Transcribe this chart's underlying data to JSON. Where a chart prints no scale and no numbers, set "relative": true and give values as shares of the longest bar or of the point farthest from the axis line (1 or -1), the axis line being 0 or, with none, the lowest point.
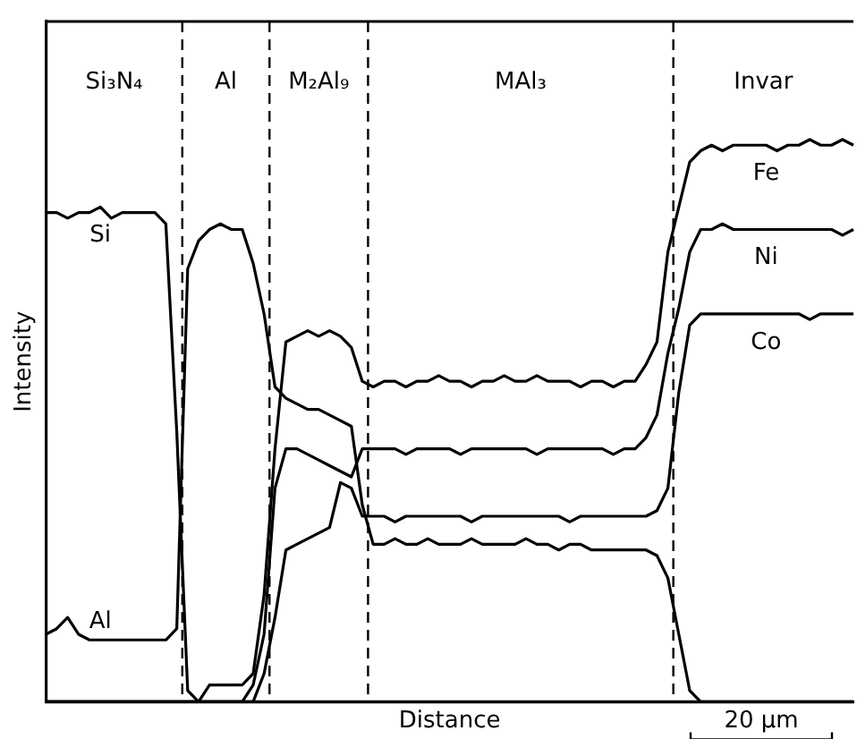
{
  "chart_data": {
    "type": "line",
    "relative": true,
    "xlabel": "Distance",
    "ylabel": "Intensity",
    "legend": false,
    "grid": false,
    "marker": "none",
    "categories": [
      null,
      null,
      null,
      null,
      null,
      null,
      null,
      null,
      null,
      null,
      null,
      null,
      null,
      null,
      null,
      null,
      null,
      null,
      null,
      null,
      null,
      null,
      null,
      null,
      null,
      null,
      null,
      null,
      null,
      null,
      null,
      null,
      null,
      null,
      null,
      null,
      null,
      null,
      null,
      null,
      null,
      null,
      null,
      null,
      null,
      null,
      null,
      null,
      null,
      null,
      null,
      null,
      null,
      null,
      null,
      null,
      null,
      null,
      null,
      null,
      null,
      null,
      null,
      null,
      null,
      null,
      null,
      null,
      null,
      null,
      null,
      null,
      null,
      null,
      null
    ],
    "series": [
      {
        "name": "Si",
        "color": "#000000",
        "values": [
          0.87,
          0.87,
          0.86,
          0.87,
          0.87,
          0.88,
          0.86,
          0.87,
          0.87,
          0.87,
          0.87,
          0.85,
          0.48,
          0.02,
          0,
          0,
          0,
          0,
          0,
          0,
          0,
          0,
          0,
          0,
          0,
          0,
          0,
          0,
          0,
          0,
          0,
          0,
          0,
          0,
          0,
          0,
          0,
          0,
          0,
          0,
          0,
          0,
          0,
          0,
          0,
          0,
          0,
          0,
          0,
          0,
          0,
          0,
          0,
          0,
          0,
          0,
          0,
          0,
          0,
          0,
          0,
          0,
          0,
          0,
          0,
          0,
          0,
          0,
          0,
          0,
          0,
          0,
          0,
          0,
          0
        ]
      },
      {
        "name": "Al",
        "color": "#000000",
        "values": [
          0.12,
          0.13,
          0.15,
          0.12,
          0.11,
          0.11,
          0.11,
          0.11,
          0.11,
          0.11,
          0.11,
          0.11,
          0.13,
          0.77,
          0.82,
          0.84,
          0.85,
          0.84,
          0.84,
          0.78,
          0.69,
          0.56,
          0.54,
          0.53,
          0.52,
          0.52,
          0.51,
          0.5,
          0.49,
          0.35,
          0.28,
          0.28,
          0.29,
          0.28,
          0.28,
          0.29,
          0.28,
          0.28,
          0.28,
          0.29,
          0.28,
          0.28,
          0.28,
          0.28,
          0.29,
          0.28,
          0.28,
          0.27,
          0.28,
          0.28,
          0.27,
          0.27,
          0.27,
          0.27,
          0.27,
          0.27,
          0.26,
          0.22,
          0.12,
          0.02,
          0,
          0,
          0,
          0,
          0,
          0,
          0,
          0,
          0,
          0,
          0,
          0,
          0,
          0,
          0
        ]
      },
      {
        "name": "Fe",
        "color": "#000000",
        "values": [
          0,
          0,
          0,
          0,
          0,
          0,
          0,
          0,
          0,
          0,
          0,
          0,
          0,
          0,
          0,
          0.03,
          0.03,
          0.03,
          0.03,
          0.05,
          0.19,
          0.45,
          0.64,
          0.65,
          0.66,
          0.65,
          0.66,
          0.65,
          0.63,
          0.57,
          0.56,
          0.57,
          0.57,
          0.56,
          0.57,
          0.57,
          0.58,
          0.57,
          0.57,
          0.56,
          0.57,
          0.57,
          0.58,
          0.57,
          0.57,
          0.58,
          0.57,
          0.57,
          0.57,
          0.56,
          0.57,
          0.57,
          0.56,
          0.57,
          0.57,
          0.6,
          0.64,
          0.8,
          0.88,
          0.96,
          0.98,
          0.99,
          0.98,
          0.99,
          0.99,
          0.99,
          0.99,
          0.98,
          0.99,
          0.99,
          1,
          0.99,
          0.99,
          1,
          0.99
        ]
      },
      {
        "name": "Ni",
        "color": "#000000",
        "values": [
          0,
          0,
          0,
          0,
          0,
          0,
          0,
          0,
          0,
          0,
          0,
          0,
          0,
          0,
          0,
          0,
          0,
          0,
          0,
          0.03,
          0.12,
          0.38,
          0.45,
          0.45,
          0.44,
          0.43,
          0.42,
          0.41,
          0.4,
          0.45,
          0.45,
          0.45,
          0.45,
          0.44,
          0.45,
          0.45,
          0.45,
          0.45,
          0.44,
          0.45,
          0.45,
          0.45,
          0.45,
          0.45,
          0.45,
          0.44,
          0.45,
          0.45,
          0.45,
          0.45,
          0.45,
          0.45,
          0.44,
          0.45,
          0.45,
          0.47,
          0.51,
          0.62,
          0.7,
          0.8,
          0.84,
          0.84,
          0.85,
          0.84,
          0.84,
          0.84,
          0.84,
          0.84,
          0.84,
          0.84,
          0.84,
          0.84,
          0.84,
          0.83,
          0.84
        ]
      },
      {
        "name": "Co",
        "color": "#000000",
        "values": [
          0,
          0,
          0,
          0,
          0,
          0,
          0,
          0,
          0,
          0,
          0,
          0,
          0,
          0,
          0,
          0,
          0,
          0,
          0,
          0,
          0.05,
          0.15,
          0.27,
          0.28,
          0.29,
          0.3,
          0.31,
          0.39,
          0.38,
          0.33,
          0.33,
          0.33,
          0.32,
          0.33,
          0.33,
          0.33,
          0.33,
          0.33,
          0.33,
          0.32,
          0.33,
          0.33,
          0.33,
          0.33,
          0.33,
          0.33,
          0.33,
          0.33,
          0.32,
          0.33,
          0.33,
          0.33,
          0.33,
          0.33,
          0.33,
          0.33,
          0.34,
          0.38,
          0.55,
          0.67,
          0.69,
          0.69,
          0.69,
          0.69,
          0.69,
          0.69,
          0.69,
          0.69,
          0.69,
          0.69,
          0.68,
          0.69,
          0.69,
          0.69,
          0.69
        ]
      }
    ],
    "annotations": [
      "Si₃N₄",
      "Al",
      "M₂Al₉",
      "MAl₃",
      "Invar",
      "20 µm"
    ]
  }
}
